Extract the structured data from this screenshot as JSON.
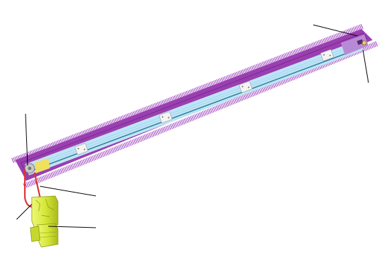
{
  "diagram": {
    "subject": "belt-conveyor-assembly",
    "components": {
      "frame": {
        "color": "#9a3fb0",
        "edge_color": "#7a2a90"
      },
      "brush_fringe": {
        "color": "#a24cc2"
      },
      "belt_surface": {
        "color": "#bfe4f5",
        "groove_color": "#8fd0ee"
      },
      "belt_center_line": {
        "color": "#2f7f9a"
      },
      "support_plates": {
        "count": 4,
        "color": "#f4f4f4"
      },
      "drive_motor": {
        "color": "#d6e83a",
        "shadow_color": "#aabb1c"
      },
      "drive_belt": {
        "color": "#e03030"
      },
      "drive_pulley": {
        "color": "#c9c9c9"
      },
      "drive_bracket": {
        "color": "#f0e060"
      },
      "tail_pulley_housing": {
        "color": "#b88ad6"
      }
    },
    "callouts": [
      {
        "id": "callout-drive-pulley",
        "target": "drive-pulley"
      },
      {
        "id": "callout-drive-belt",
        "target": "drive-belt"
      },
      {
        "id": "callout-motor-left",
        "target": "drive-motor"
      },
      {
        "id": "callout-motor-gearbox",
        "target": "drive-motor"
      },
      {
        "id": "callout-tail-top",
        "target": "tail-pulley"
      },
      {
        "id": "callout-tail-side",
        "target": "tail-pulley"
      }
    ]
  }
}
